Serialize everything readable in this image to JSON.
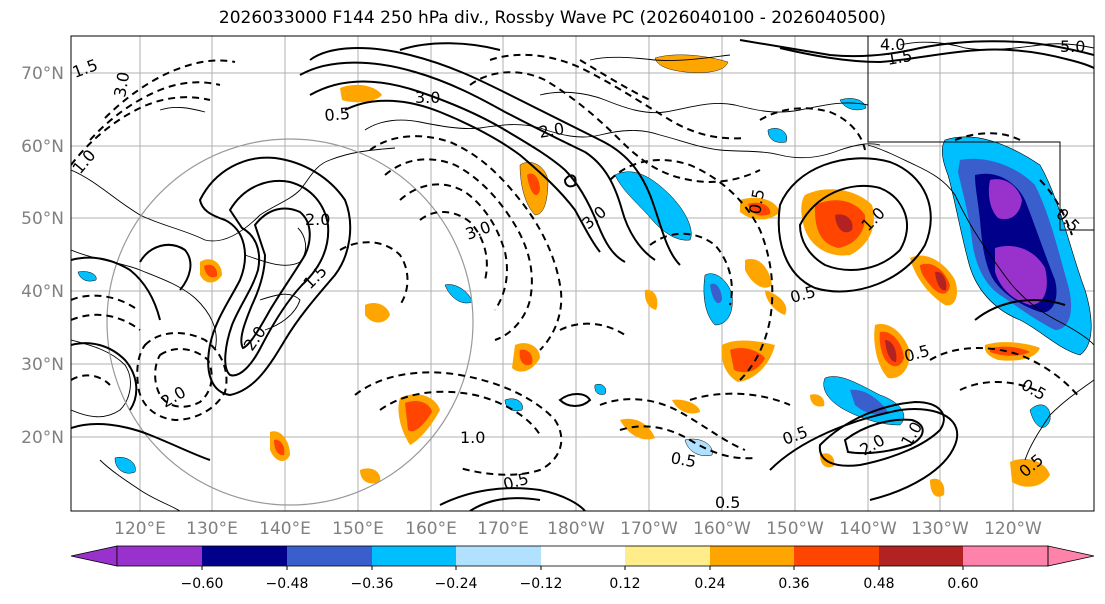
{
  "title": "2026033000 F144 250 hPa div., Rossby Wave PC (2026040100 - 2026040500)",
  "latitude_labels": [
    "70°N",
    "60°N",
    "50°N",
    "40°N",
    "30°N",
    "20°N"
  ],
  "longitude_labels": [
    "120°E",
    "130°E",
    "140°E",
    "150°E",
    "160°E",
    "170°E",
    "180°W",
    "170°W",
    "160°W",
    "150°W",
    "140°W",
    "130°W",
    "120°W"
  ],
  "contour_labels": [
    "0.5",
    "1.0",
    "1.5",
    "2.0",
    "3.0",
    "4.0",
    "5.0"
  ],
  "colorbar": {
    "ticks": [
      "−0.60",
      "−0.48",
      "−0.36",
      "−0.24",
      "−0.12",
      "0.12",
      "0.24",
      "0.36",
      "0.48",
      "0.60"
    ],
    "colors": [
      "#9932cc",
      "#00008b",
      "#3a5fcd",
      "#00bfff",
      "#b0e2ff",
      "#ffffff",
      "#ffec8b",
      "#ffa500",
      "#ff4500",
      "#b22222",
      "#ff82ab"
    ]
  },
  "colors": {
    "negative_strong": "#9932cc",
    "negative_dark": "#00008b",
    "negative_mid": "#3a5fcd",
    "negative_light": "#00bfff",
    "negative_pale": "#b0e2ff",
    "positive_pale": "#ffec8b",
    "positive_light": "#ffa500",
    "positive_mid": "#ff4500",
    "positive_dark": "#b22222",
    "positive_strong": "#ff82ab"
  }
}
